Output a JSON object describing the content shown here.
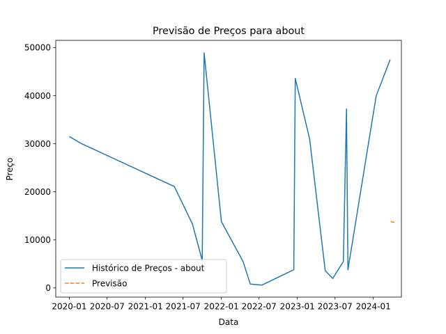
{
  "chart_data": {
    "type": "line",
    "title": "Previsão de Preços para about",
    "xlabel": "Data",
    "ylabel": "Preço",
    "x_ticks": [
      "2020-01",
      "2020-07",
      "2021-01",
      "2021-07",
      "2022-01",
      "2022-07",
      "2023-01",
      "2023-07",
      "2024-01"
    ],
    "y_ticks": [
      0,
      10000,
      20000,
      30000,
      40000,
      50000
    ],
    "xlim": [
      "2019-10-28",
      "2024-05-15"
    ],
    "ylim": [
      -1900,
      51500
    ],
    "grid": false,
    "legend_position": "lower left",
    "series": [
      {
        "name": "Histórico de Preços - about",
        "color": "#1f77b4",
        "style": "solid",
        "points": [
          [
            "2020-01-01",
            31500
          ],
          [
            "2020-03-01",
            30000
          ],
          [
            "2021-05-20",
            21100
          ],
          [
            "2021-08-15",
            13300
          ],
          [
            "2021-10-01",
            5700
          ],
          [
            "2021-10-10",
            48900
          ],
          [
            "2022-01-01",
            13800
          ],
          [
            "2022-04-15",
            5500
          ],
          [
            "2022-05-20",
            800
          ],
          [
            "2022-07-15",
            600
          ],
          [
            "2022-12-15",
            3800
          ],
          [
            "2022-12-22",
            43600
          ],
          [
            "2023-03-01",
            31000
          ],
          [
            "2023-05-15",
            3600
          ],
          [
            "2023-06-20",
            2000
          ],
          [
            "2023-08-10",
            5500
          ],
          [
            "2023-08-25",
            37200
          ],
          [
            "2023-09-01",
            3800
          ],
          [
            "2023-12-01",
            28000
          ],
          [
            "2024-01-15",
            40000
          ],
          [
            "2024-03-22",
            47500
          ]
        ]
      },
      {
        "name": "Previsão",
        "color": "#ff7f0e",
        "style": "dashed",
        "points": [
          [
            "2024-03-25",
            13800
          ],
          [
            "2024-04-16",
            13600
          ]
        ]
      }
    ]
  }
}
